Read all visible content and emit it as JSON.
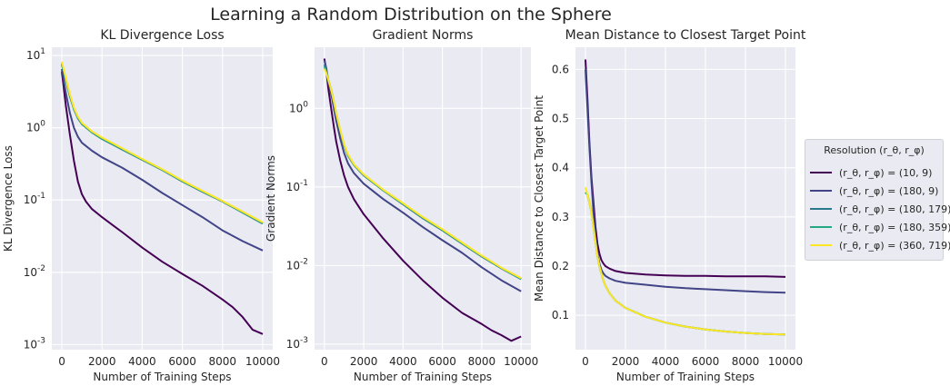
{
  "figure_title": "Learning a Random Distribution on the Sphere",
  "chart_data": [
    {
      "type": "line",
      "title": "KL Divergence Loss",
      "xlabel": "Number of Training Steps",
      "ylabel": "KL Divergence Loss",
      "yscale": "log",
      "xlim": [
        -500,
        10500
      ],
      "ylim": [
        0.00085,
        13
      ],
      "xticks": [
        0,
        2000,
        4000,
        6000,
        8000,
        10000
      ],
      "yticks": [
        0.001,
        0.01,
        0.1,
        1,
        10
      ],
      "ytick_labels": [
        [
          "10",
          "-3"
        ],
        [
          "10",
          "-2"
        ],
        [
          "10",
          "-1"
        ],
        [
          "10",
          "0"
        ],
        [
          "10",
          "1"
        ]
      ],
      "grid": true,
      "series": [
        {
          "name": "(r_θ, r_φ) = (10, 9)",
          "color": "#440154",
          "x": [
            0,
            200,
            400,
            600,
            800,
            1000,
            1200,
            1500,
            2000,
            3000,
            4000,
            5000,
            6000,
            7000,
            8000,
            8500,
            9000,
            9500,
            10000
          ],
          "y": [
            6.0,
            2.0,
            0.8,
            0.35,
            0.18,
            0.12,
            0.095,
            0.075,
            0.058,
            0.036,
            0.022,
            0.014,
            0.0095,
            0.0065,
            0.0042,
            0.0033,
            0.0024,
            0.0016,
            0.0014
          ]
        },
        {
          "name": "(r_θ, r_φ) = (180, 9)",
          "color": "#414487",
          "x": [
            0,
            200,
            400,
            600,
            800,
            1000,
            1500,
            2000,
            3000,
            4000,
            5000,
            6000,
            7000,
            8000,
            9000,
            10000
          ],
          "y": [
            6.5,
            3.0,
            1.6,
            1.0,
            0.75,
            0.62,
            0.48,
            0.39,
            0.28,
            0.19,
            0.125,
            0.085,
            0.058,
            0.038,
            0.027,
            0.02
          ]
        },
        {
          "name": "(r_θ, r_φ) = (180, 179)",
          "color": "#2a788e",
          "x": [
            0,
            200,
            400,
            600,
            800,
            1000,
            1500,
            2000,
            3000,
            4000,
            5000,
            6000,
            7000,
            8000,
            9000,
            10000
          ],
          "y": [
            7.5,
            4.5,
            2.7,
            1.8,
            1.35,
            1.12,
            0.86,
            0.7,
            0.5,
            0.36,
            0.26,
            0.18,
            0.13,
            0.095,
            0.067,
            0.047
          ]
        },
        {
          "name": "(r_θ, r_φ) = (180, 359)",
          "color": "#22a884",
          "x": [
            0,
            200,
            400,
            600,
            800,
            1000,
            1500,
            2000,
            3000,
            4000,
            5000,
            6000,
            7000,
            8000,
            9000,
            10000
          ],
          "y": [
            7.8,
            4.6,
            2.8,
            1.85,
            1.38,
            1.14,
            0.87,
            0.71,
            0.51,
            0.365,
            0.262,
            0.183,
            0.132,
            0.096,
            0.068,
            0.048
          ]
        },
        {
          "name": "(r_θ, r_φ) = (360, 719)",
          "color": "#fde725",
          "x": [
            0,
            200,
            400,
            600,
            800,
            1000,
            1500,
            2000,
            3000,
            4000,
            5000,
            6000,
            7000,
            8000,
            9000,
            10000
          ],
          "y": [
            8.2,
            4.8,
            2.9,
            1.9,
            1.42,
            1.17,
            0.89,
            0.73,
            0.52,
            0.37,
            0.266,
            0.186,
            0.134,
            0.097,
            0.069,
            0.049
          ]
        }
      ]
    },
    {
      "type": "line",
      "title": "Gradient Norms",
      "xlabel": "Number of Training Steps",
      "ylabel": "Gradient Norms",
      "yscale": "log",
      "xlim": [
        -500,
        10500
      ],
      "ylim": [
        0.00085,
        6
      ],
      "xticks": [
        0,
        2000,
        4000,
        6000,
        8000,
        10000
      ],
      "yticks": [
        0.001,
        0.01,
        0.1,
        1
      ],
      "ytick_labels": [
        [
          "10",
          "-3"
        ],
        [
          "10",
          "-2"
        ],
        [
          "10",
          "-1"
        ],
        [
          "10",
          "0"
        ]
      ],
      "grid": true,
      "series": [
        {
          "name": "(r_θ, r_φ) = (10, 9)",
          "color": "#440154",
          "x": [
            0,
            100,
            200,
            300,
            400,
            500,
            600,
            800,
            1000,
            1200,
            1500,
            2000,
            3000,
            4000,
            5000,
            6000,
            7000,
            8000,
            8500,
            9000,
            9500,
            10000
          ],
          "y": [
            4.3,
            3.0,
            1.8,
            1.2,
            0.8,
            0.55,
            0.38,
            0.22,
            0.14,
            0.1,
            0.07,
            0.045,
            0.022,
            0.0115,
            0.0065,
            0.0039,
            0.0025,
            0.0018,
            0.0015,
            0.0013,
            0.0011,
            0.00125
          ]
        },
        {
          "name": "(r_θ, r_φ) = (180, 9)",
          "color": "#414487",
          "x": [
            0,
            100,
            200,
            300,
            400,
            500,
            600,
            800,
            1000,
            1200,
            1500,
            2000,
            3000,
            4000,
            5000,
            6000,
            7000,
            8000,
            9000,
            10000
          ],
          "y": [
            4.1,
            3.2,
            2.2,
            1.7,
            1.3,
            0.95,
            0.7,
            0.42,
            0.27,
            0.2,
            0.15,
            0.11,
            0.07,
            0.047,
            0.031,
            0.021,
            0.0145,
            0.0095,
            0.0065,
            0.0047
          ]
        },
        {
          "name": "(r_θ, r_φ) = (180, 179)",
          "color": "#2a788e",
          "x": [
            0,
            100,
            200,
            300,
            400,
            500,
            600,
            800,
            1000,
            1200,
            1500,
            2000,
            3000,
            4000,
            5000,
            6000,
            7000,
            8000,
            9000,
            10000
          ],
          "y": [
            3.6,
            3.0,
            2.3,
            1.9,
            1.5,
            1.15,
            0.85,
            0.52,
            0.34,
            0.25,
            0.19,
            0.14,
            0.09,
            0.06,
            0.04,
            0.028,
            0.019,
            0.013,
            0.0092,
            0.0067
          ]
        },
        {
          "name": "(r_θ, r_φ) = (180, 359)",
          "color": "#22a884",
          "x": [
            0,
            100,
            200,
            300,
            400,
            500,
            600,
            800,
            1000,
            1200,
            1500,
            2000,
            3000,
            4000,
            5000,
            6000,
            7000,
            8000,
            9000,
            10000
          ],
          "y": [
            3.4,
            2.9,
            2.3,
            1.9,
            1.5,
            1.16,
            0.86,
            0.53,
            0.345,
            0.255,
            0.193,
            0.142,
            0.091,
            0.061,
            0.041,
            0.0285,
            0.0193,
            0.0132,
            0.0093,
            0.0068
          ]
        },
        {
          "name": "(r_θ, r_φ) = (360, 719)",
          "color": "#fde725",
          "x": [
            0,
            100,
            200,
            300,
            400,
            500,
            600,
            800,
            1000,
            1200,
            1500,
            2000,
            3000,
            4000,
            5000,
            6000,
            7000,
            8000,
            9000,
            10000
          ],
          "y": [
            3.2,
            2.8,
            2.3,
            1.9,
            1.5,
            1.17,
            0.87,
            0.54,
            0.35,
            0.26,
            0.195,
            0.144,
            0.092,
            0.062,
            0.0415,
            0.029,
            0.0196,
            0.0134,
            0.0094,
            0.0069
          ]
        }
      ]
    },
    {
      "type": "line",
      "title": "Mean Distance to Closest Target Point",
      "xlabel": "Number of Training Steps",
      "ylabel": "Mean Distance to Closest Target Point",
      "yscale": "linear",
      "xlim": [
        -500,
        10500
      ],
      "ylim": [
        0.03,
        0.645
      ],
      "xticks": [
        0,
        2000,
        4000,
        6000,
        8000,
        10000
      ],
      "yticks": [
        0.1,
        0.2,
        0.3,
        0.4,
        0.5,
        0.6
      ],
      "ytick_labels": [
        [
          "0.1",
          ""
        ],
        [
          "0.2",
          ""
        ],
        [
          "0.3",
          ""
        ],
        [
          "0.4",
          ""
        ],
        [
          "0.5",
          ""
        ],
        [
          "0.6",
          ""
        ]
      ],
      "grid": true,
      "series": [
        {
          "name": "(r_θ, r_φ) = (10, 9)",
          "color": "#440154",
          "x": [
            0,
            100,
            200,
            300,
            400,
            500,
            600,
            700,
            800,
            900,
            1000,
            1200,
            1500,
            2000,
            3000,
            4000,
            5000,
            6000,
            7000,
            8000,
            9000,
            10000
          ],
          "y": [
            0.62,
            0.54,
            0.45,
            0.38,
            0.33,
            0.28,
            0.245,
            0.225,
            0.212,
            0.205,
            0.2,
            0.195,
            0.19,
            0.186,
            0.183,
            0.181,
            0.18,
            0.18,
            0.179,
            0.179,
            0.179,
            0.178
          ]
        },
        {
          "name": "(r_θ, r_φ) = (180, 9)",
          "color": "#414487",
          "x": [
            0,
            100,
            200,
            300,
            400,
            500,
            600,
            700,
            800,
            900,
            1000,
            1200,
            1500,
            2000,
            3000,
            4000,
            5000,
            6000,
            7000,
            8000,
            9000,
            10000
          ],
          "y": [
            0.6,
            0.52,
            0.44,
            0.37,
            0.31,
            0.26,
            0.225,
            0.205,
            0.192,
            0.185,
            0.18,
            0.175,
            0.17,
            0.166,
            0.162,
            0.158,
            0.155,
            0.153,
            0.151,
            0.149,
            0.147,
            0.146
          ]
        },
        {
          "name": "(r_θ, r_φ) = (180, 179)",
          "color": "#2a788e",
          "x": [
            0,
            100,
            200,
            300,
            400,
            500,
            600,
            700,
            800,
            900,
            1000,
            1200,
            1500,
            2000,
            3000,
            4000,
            5000,
            6000,
            7000,
            8000,
            9000,
            10000
          ],
          "y": [
            0.35,
            0.345,
            0.33,
            0.31,
            0.28,
            0.25,
            0.22,
            0.2,
            0.185,
            0.17,
            0.16,
            0.145,
            0.13,
            0.115,
            0.097,
            0.085,
            0.077,
            0.071,
            0.067,
            0.064,
            0.062,
            0.061
          ]
        },
        {
          "name": "(r_θ, r_φ) = (180, 359)",
          "color": "#22a884",
          "x": [
            0,
            100,
            200,
            300,
            400,
            500,
            600,
            700,
            800,
            900,
            1000,
            1200,
            1500,
            2000,
            3000,
            4000,
            5000,
            6000,
            7000,
            8000,
            9000,
            10000
          ],
          "y": [
            0.35,
            0.345,
            0.33,
            0.31,
            0.28,
            0.25,
            0.22,
            0.2,
            0.185,
            0.17,
            0.16,
            0.145,
            0.13,
            0.115,
            0.097,
            0.085,
            0.077,
            0.071,
            0.067,
            0.064,
            0.062,
            0.061
          ]
        },
        {
          "name": "(r_θ, r_φ) = (360, 719)",
          "color": "#fde725",
          "x": [
            0,
            100,
            200,
            300,
            400,
            500,
            600,
            700,
            800,
            900,
            1000,
            1200,
            1500,
            2000,
            3000,
            4000,
            5000,
            6000,
            7000,
            8000,
            9000,
            10000
          ],
          "y": [
            0.36,
            0.345,
            0.33,
            0.31,
            0.28,
            0.25,
            0.22,
            0.2,
            0.185,
            0.17,
            0.16,
            0.145,
            0.13,
            0.115,
            0.097,
            0.085,
            0.077,
            0.071,
            0.067,
            0.064,
            0.062,
            0.061
          ]
        }
      ]
    }
  ],
  "legend": {
    "title": "Resolution (r_θ, r_φ)",
    "placement": "right",
    "items": [
      {
        "label": "(r_θ, r_φ) = (10, 9)",
        "color": "#440154"
      },
      {
        "label": "(r_θ, r_φ) = (180, 9)",
        "color": "#414487"
      },
      {
        "label": "(r_θ, r_φ) = (180, 179)",
        "color": "#2a788e"
      },
      {
        "label": "(r_θ, r_φ) = (180, 359)",
        "color": "#22a884"
      },
      {
        "label": "(r_θ, r_φ) = (360, 719)",
        "color": "#fde725"
      }
    ]
  },
  "colors": {
    "panel_bg": "#eaeaf2",
    "grid": "#ffffff",
    "text": "#262626"
  }
}
